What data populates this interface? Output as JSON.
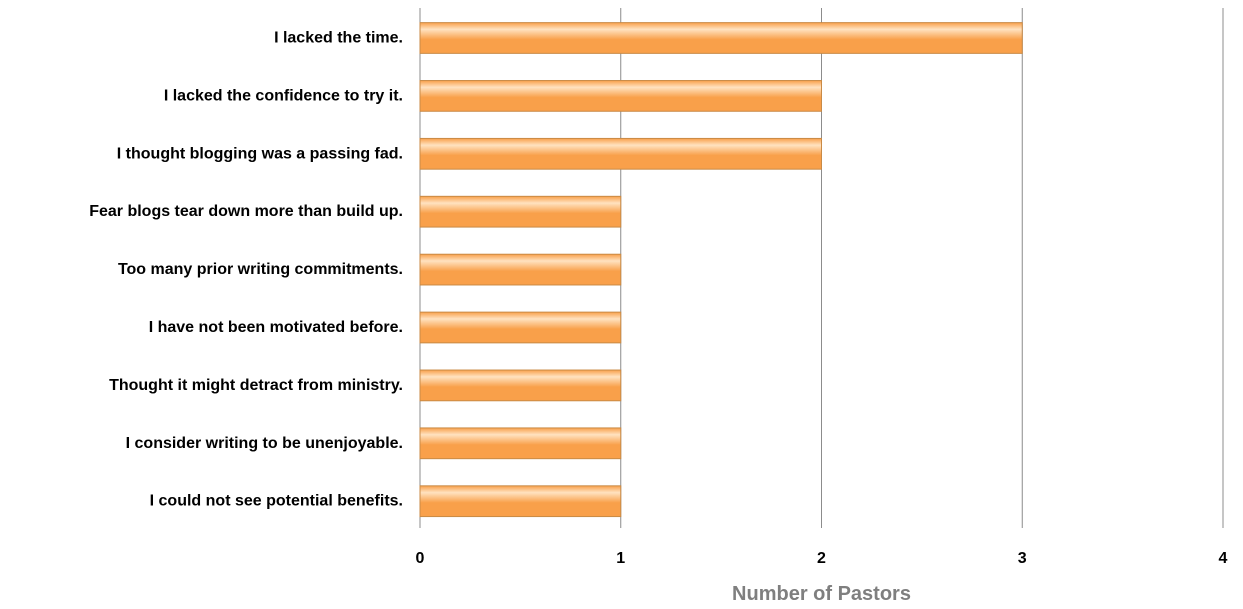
{
  "chart_data": {
    "type": "bar",
    "orientation": "horizontal",
    "categories": [
      "I lacked the time.",
      "I lacked the confidence to try it.",
      "I thought blogging was a passing fad.",
      "Fear blogs tear down more than build up.",
      "Too many prior writing commitments.",
      "I have not been motivated before.",
      "Thought it might detract from ministry.",
      "I consider writing to be unenjoyable.",
      "I could not see potential benefits."
    ],
    "values": [
      3,
      2,
      2,
      1,
      1,
      1,
      1,
      1,
      1
    ],
    "xlabel": "Number of Pastors",
    "ylabel": "",
    "xlim": [
      0,
      4
    ],
    "x_ticks": [
      0,
      1,
      2,
      3,
      4
    ],
    "grid": true,
    "bar_color": "#F9A04A",
    "bar_highlight_color": "#FFE2C0",
    "bar_edge_color": "#C98A45",
    "grid_color": "#8C8C8C",
    "axis_title_color": "#7F7F7F"
  }
}
